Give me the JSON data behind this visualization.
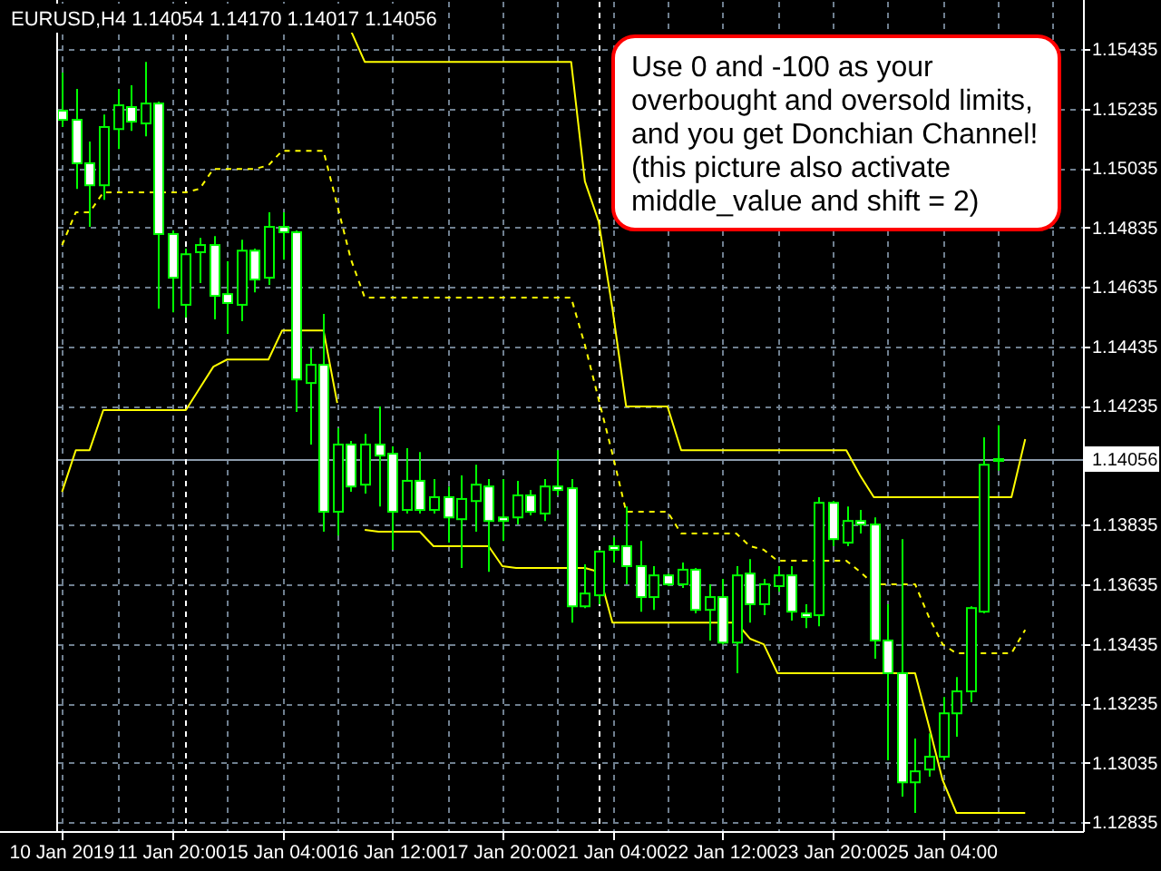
{
  "chart_data": {
    "type": "candlestick",
    "title": "EURUSD,H4  1.14054 1.14170 1.14017 1.14056",
    "annotations": [
      "Use 0 and -100 as your overbought and oversold limits, and you get Donchian Channel! (this picture also activate middle_value and shift = 2)"
    ],
    "categories": [
      "10 Jan 2019",
      null,
      null,
      null,
      null,
      null,
      null,
      null,
      "11 Jan 20:00",
      null,
      null,
      null,
      null,
      null,
      null,
      null,
      "15 Jan 04:00",
      null,
      null,
      null,
      null,
      null,
      null,
      null,
      "16 Jan 12:00",
      null,
      null,
      null,
      null,
      null,
      null,
      null,
      "17 Jan 20:00",
      null,
      null,
      null,
      null,
      null,
      null,
      null,
      "21 Jan 04:00",
      null,
      null,
      null,
      null,
      null,
      null,
      null,
      "22 Jan 12:00",
      null,
      null,
      null,
      null,
      null,
      null,
      null,
      "23 Jan 20:00",
      null,
      null,
      null,
      null,
      null,
      null,
      null,
      "25 Jan 04:00",
      null,
      null,
      null,
      null,
      null,
      null
    ],
    "color": "#00ff00",
    "ohlc": [
      [
        1.15228,
        1.15356,
        1.15173,
        1.15197
      ],
      [
        1.15197,
        1.15301,
        1.14965,
        1.15051
      ],
      [
        1.15051,
        1.15124,
        1.14837,
        1.14977
      ],
      [
        1.14977,
        1.15215,
        1.14928,
        1.15173
      ],
      [
        1.15166,
        1.15301,
        1.15099,
        1.15246
      ],
      [
        1.1524,
        1.15313,
        1.1516,
        1.15191
      ],
      [
        1.15185,
        1.15392,
        1.15142,
        1.15252
      ],
      [
        1.15252,
        1.15258,
        1.14562,
        1.14813
      ],
      [
        1.14813,
        1.14825,
        1.1455,
        1.14666
      ],
      [
        1.14575,
        1.14764,
        1.14532,
        1.14745
      ],
      [
        1.14752,
        1.148,
        1.14648,
        1.14776
      ],
      [
        1.14776,
        1.14806,
        1.14526,
        1.14605
      ],
      [
        1.14611,
        1.14721,
        1.14477,
        1.14581
      ],
      [
        1.14575,
        1.14794,
        1.1452,
        1.14757
      ],
      [
        1.14757,
        1.14764,
        1.14617,
        1.1466
      ],
      [
        1.14666,
        1.14886,
        1.14642,
        1.14837
      ],
      [
        1.14837,
        1.14886,
        1.14727,
        1.14819
      ],
      [
        1.14819,
        1.14825,
        1.14215,
        1.14324
      ],
      [
        1.14312,
        1.14428,
        1.14105,
        1.14373
      ],
      [
        1.14373,
        1.14544,
        1.13812,
        1.13879
      ],
      [
        1.13879,
        1.1416,
        1.13799,
        1.14105
      ],
      [
        1.14105,
        1.14117,
        1.13946,
        1.13964
      ],
      [
        1.1397,
        1.14141,
        1.1394,
        1.14105
      ],
      [
        1.14105,
        1.14233,
        1.13897,
        1.14068
      ],
      [
        1.14074,
        1.14099,
        1.13751,
        1.13879
      ],
      [
        1.13885,
        1.14093,
        1.13873,
        1.13983
      ],
      [
        1.13983,
        1.1408,
        1.13873,
        1.13885
      ],
      [
        1.13885,
        1.13989,
        1.13873,
        1.13928
      ],
      [
        1.13928,
        1.13964,
        1.13775,
        1.1386
      ],
      [
        1.13854,
        1.14001,
        1.1369,
        1.13922
      ],
      [
        1.13915,
        1.14037,
        1.13812,
        1.1397
      ],
      [
        1.13964,
        1.13989,
        1.13677,
        1.13848
      ],
      [
        1.1386,
        1.13989,
        1.13781,
        1.13848
      ],
      [
        1.1386,
        1.13983,
        1.13836,
        1.13934
      ],
      [
        1.13934,
        1.13952,
        1.13867,
        1.13879
      ],
      [
        1.13873,
        1.13989,
        1.13848,
        1.13964
      ],
      [
        1.13964,
        1.14086,
        1.13934,
        1.13952
      ],
      [
        1.13958,
        1.13989,
        1.13506,
        1.13561
      ],
      [
        1.13561,
        1.13702,
        1.13555,
        1.13604
      ],
      [
        1.13598,
        1.13751,
        1.13568,
        1.13745
      ],
      [
        1.13763,
        1.13793,
        1.13708,
        1.13751
      ],
      [
        1.13763,
        1.13897,
        1.13635,
        1.13696
      ],
      [
        1.13696,
        1.13781,
        1.13543,
        1.13592
      ],
      [
        1.13592,
        1.13696,
        1.13549,
        1.13665
      ],
      [
        1.13665,
        1.13671,
        1.13629,
        1.13635
      ],
      [
        1.13635,
        1.13708,
        1.13623,
        1.13684
      ],
      [
        1.13684,
        1.1369,
        1.13537,
        1.13549
      ],
      [
        1.13549,
        1.13635,
        1.13446,
        1.13592
      ],
      [
        1.13592,
        1.13653,
        1.13433,
        1.13439
      ],
      [
        1.13439,
        1.13696,
        1.13336,
        1.13665
      ],
      [
        1.13671,
        1.1372,
        1.13506,
        1.13568
      ],
      [
        1.13568,
        1.13653,
        1.13531,
        1.13635
      ],
      [
        1.13629,
        1.13696,
        1.1361,
        1.13665
      ],
      [
        1.13665,
        1.13696,
        1.13513,
        1.13543
      ],
      [
        1.13537,
        1.13568,
        1.13488,
        1.13525
      ],
      [
        1.13531,
        1.13928,
        1.13494,
        1.13909
      ],
      [
        1.13909,
        1.13915,
        1.13763,
        1.13787
      ],
      [
        1.13775,
        1.13897,
        1.13763,
        1.13848
      ],
      [
        1.13848,
        1.13885,
        1.13806,
        1.13836
      ],
      [
        1.13836,
        1.1386,
        1.13385,
        1.13446
      ],
      [
        1.13446,
        1.13568,
        1.13043,
        1.13336
      ],
      [
        1.13336,
        1.13787,
        1.12921,
        1.12969
      ],
      [
        1.12969,
        1.13116,
        1.12866,
        1.13006
      ],
      [
        1.13012,
        1.13134,
        1.12988,
        1.13055
      ],
      [
        1.13055,
        1.13256,
        1.13043,
        1.13201
      ],
      [
        1.13201,
        1.13323,
        1.13122,
        1.13275
      ],
      [
        1.13275,
        1.13561,
        1.13238,
        1.13555
      ],
      [
        1.13543,
        1.14129,
        1.13537,
        1.14037
      ],
      [
        1.14054,
        1.1417,
        1.14017,
        1.14056
      ],
      null,
      null
    ],
    "series": [
      {
        "type": "line",
        "color": "#ffff00",
        "values": [
          null,
          null,
          null,
          null,
          null,
          null,
          null,
          null,
          null,
          null,
          null,
          null,
          null,
          null,
          null,
          null,
          null,
          null,
          null,
          null,
          null,
          1.15496,
          1.15392,
          1.15392,
          1.15392,
          1.15392,
          1.15392,
          1.15392,
          1.15392,
          1.15392,
          1.15392,
          1.15392,
          1.15392,
          1.15392,
          1.15392,
          1.15392,
          1.15392,
          1.15392,
          1.1499,
          1.14855,
          1.14562,
          1.14233,
          1.14233,
          1.14233,
          1.14233,
          1.14086,
          1.14086,
          1.14086,
          1.14086,
          1.14086,
          1.14086,
          1.14086,
          1.14086,
          1.14086,
          1.14086,
          1.14086,
          1.14086,
          1.14086,
          1.14001,
          1.13928,
          1.13928,
          1.13928,
          1.13928,
          1.13928,
          1.13928,
          1.13928,
          1.13928,
          1.13928,
          1.13928,
          1.13928,
          1.14123
        ]
      },
      {
        "type": "line",
        "color": "#ffff00",
        "values": [
          1.13946,
          1.14086,
          1.14086,
          1.14221,
          1.14221,
          1.14221,
          1.14221,
          1.14221,
          1.14221,
          1.14221,
          1.14294,
          1.14367,
          1.14391,
          1.14391,
          1.14391,
          1.14391,
          1.14489,
          1.14489,
          1.14489,
          1.14489,
          1.14245,
          null,
          1.13818,
          1.13812,
          1.13812,
          1.13812,
          1.13812,
          1.13763,
          1.13763,
          1.13763,
          1.13763,
          1.13763,
          1.13696,
          1.1369,
          1.1369,
          1.1369,
          1.1369,
          1.1369,
          1.1369,
          1.13677,
          1.13506,
          1.13506,
          1.13506,
          1.13506,
          1.13506,
          1.13506,
          1.13506,
          1.13506,
          1.13506,
          1.13506,
          1.13452,
          1.13433,
          1.13336,
          1.13336,
          1.13336,
          1.13336,
          1.13336,
          1.13336,
          1.13336,
          1.13336,
          1.13336,
          1.13336,
          1.13336,
          1.13159,
          1.12976,
          1.12866,
          1.12866,
          1.12866,
          1.12866,
          1.12866,
          1.12866
        ]
      },
      {
        "type": "line",
        "color": "#ffff00",
        "line_style": "dashed",
        "values": [
          1.14776,
          1.14886,
          1.14886,
          1.14953,
          1.14953,
          1.14953,
          1.14953,
          1.14953,
          1.14953,
          1.14953,
          1.14965,
          1.15032,
          1.15032,
          1.15032,
          1.15032,
          1.15044,
          1.15093,
          1.15093,
          1.15093,
          1.15093,
          1.1491,
          1.14727,
          1.14599,
          1.14599,
          1.14599,
          1.14599,
          1.14599,
          1.14599,
          1.14599,
          1.14599,
          1.14599,
          1.14599,
          1.14599,
          1.14599,
          1.14599,
          1.14599,
          1.14599,
          1.14599,
          1.1444,
          1.14257,
          1.14074,
          1.13879,
          1.13879,
          1.13879,
          1.13879,
          1.13806,
          1.13806,
          1.13806,
          1.13806,
          1.13806,
          1.13763,
          1.13751,
          1.13714,
          1.13714,
          1.13714,
          1.13714,
          1.13714,
          1.13714,
          1.13677,
          1.13635,
          1.13635,
          1.13635,
          1.13635,
          1.13525,
          1.13433,
          1.13403,
          1.13403,
          1.13403,
          1.13403,
          1.13403,
          1.13482
        ]
      }
    ],
    "ylim": [
      1.12805,
      1.15594
    ],
    "yticks": [
      1.12835,
      1.13035,
      1.13235,
      1.13435,
      1.13635,
      1.13835,
      1.14235,
      1.14435,
      1.14635,
      1.14835,
      1.15035,
      1.15235,
      1.15435
    ],
    "grid": true,
    "ref_lines": [
      {
        "axis": "y",
        "value": 1.14056,
        "label": "1.14056",
        "color": "#8c9bab"
      }
    ]
  }
}
